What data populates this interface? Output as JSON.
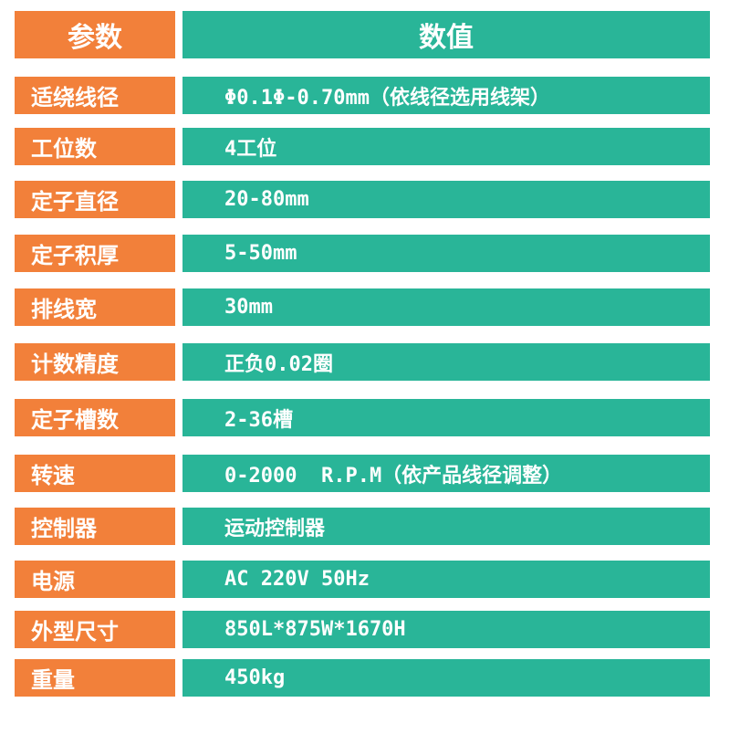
{
  "header": {
    "param": "参数",
    "value": "数值"
  },
  "colors": {
    "key_bg": "#F2803A",
    "value_bg": "#29B598"
  },
  "rows": [
    {
      "label": "适绕线径",
      "value": "Φ0.1Φ-0.70mm（依线径选用线架）"
    },
    {
      "label": "工位数",
      "value": "4工位"
    },
    {
      "label": "定子直径",
      "value": "20-80mm"
    },
    {
      "label": "定子积厚",
      "value": "5-50mm"
    },
    {
      "label": "排线宽",
      "value": "30mm"
    },
    {
      "label": "计数精度",
      "value": "正负0.02圈"
    },
    {
      "label": "定子槽数",
      "value": "2-36槽"
    },
    {
      "label": "转速",
      "value": "0-2000  R.P.M（依产品线径调整）"
    },
    {
      "label": "控制器",
      "value": "运动控制器"
    },
    {
      "label": "电源",
      "value": "AC 220V 50Hz"
    },
    {
      "label": "外型尺寸",
      "value": "850L*875W*1670H"
    },
    {
      "label": "重量",
      "value": "450kg"
    }
  ]
}
